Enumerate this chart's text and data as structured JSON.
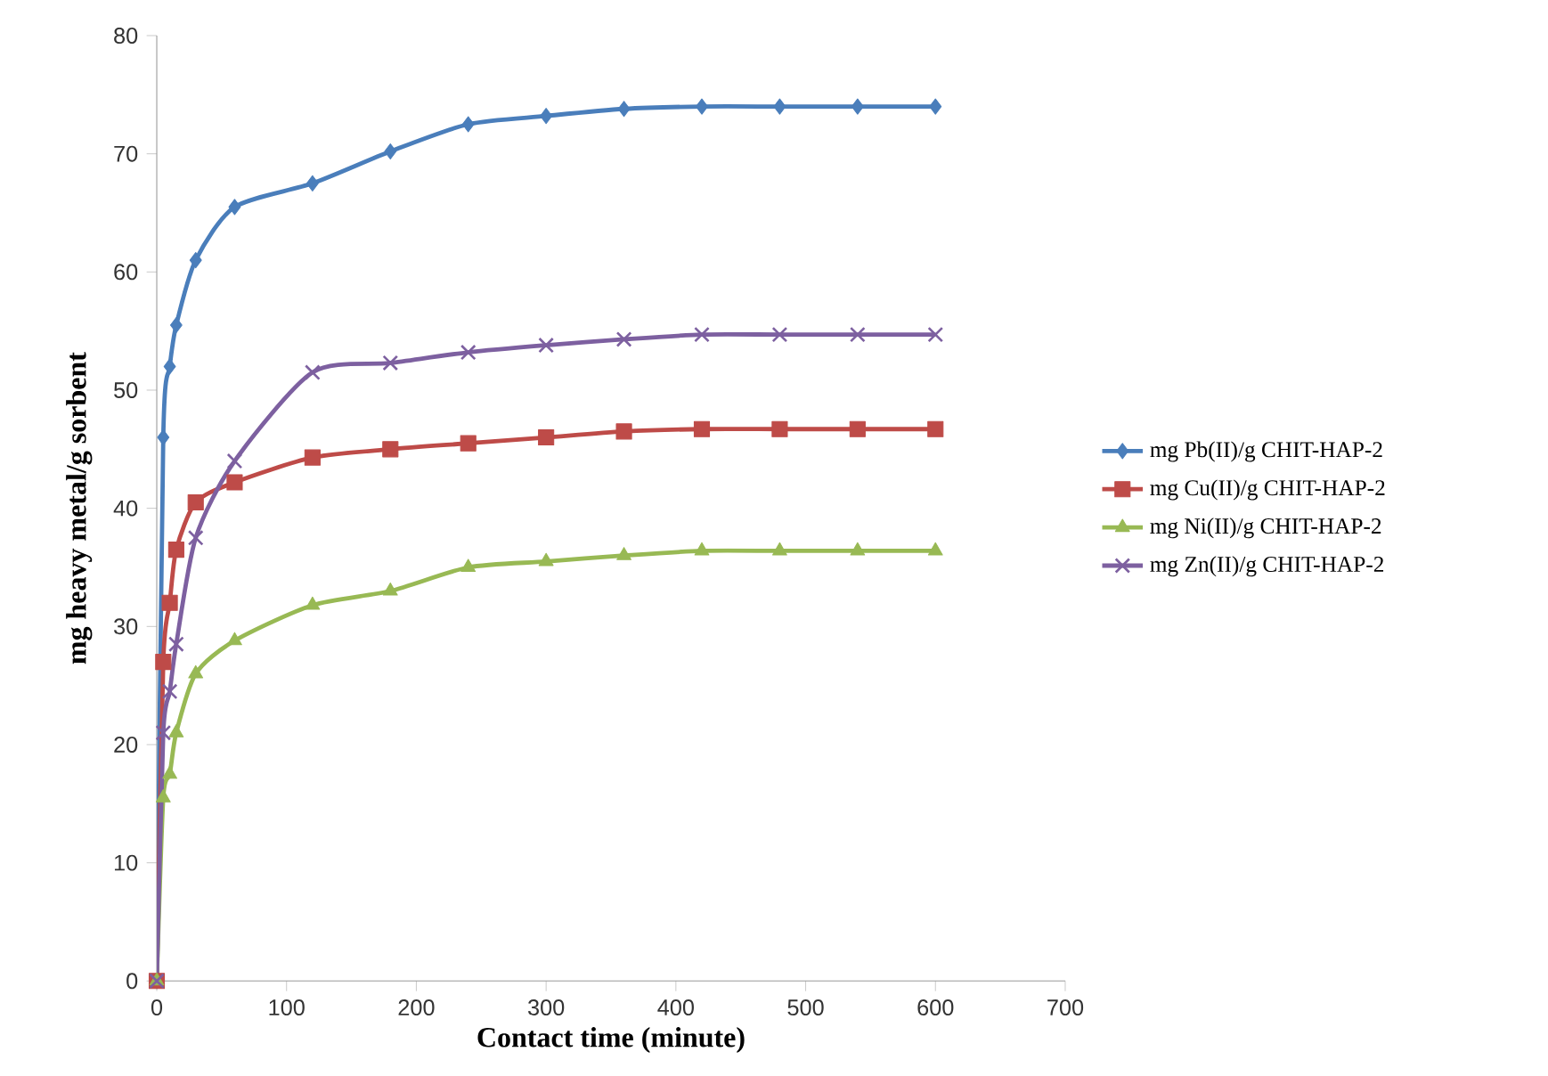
{
  "chart_data": {
    "type": "line",
    "xlabel": "Contact time (minute)",
    "ylabel": "mg heavy metal/g sorbent",
    "x": [
      0,
      5,
      10,
      15,
      30,
      60,
      120,
      180,
      240,
      300,
      360,
      420,
      480,
      540,
      600
    ],
    "xlim": [
      0,
      700
    ],
    "xticks": [
      0,
      100,
      200,
      300,
      400,
      500,
      600,
      700
    ],
    "ylim": [
      0,
      80
    ],
    "yticks": [
      0,
      10,
      20,
      30,
      40,
      50,
      60,
      70,
      80
    ],
    "grid": false,
    "legend": "right",
    "series": [
      {
        "name": "mg Pb(II)/g CHIT-HAP-2",
        "color": "#4a7ebb",
        "marker": "diamond",
        "values": [
          0,
          46,
          52,
          55.5,
          61,
          65.5,
          67.5,
          70.2,
          72.5,
          73.2,
          73.8,
          74,
          74,
          74,
          74
        ]
      },
      {
        "name": "mg Cu(II)/g CHIT-HAP-2",
        "color": "#be4b48",
        "marker": "square",
        "values": [
          0,
          27,
          32,
          36.5,
          40.5,
          42.2,
          44.3,
          45,
          45.5,
          46,
          46.5,
          46.7,
          46.7,
          46.7,
          46.7
        ]
      },
      {
        "name": "mg Ni(II)/g CHIT-HAP-2",
        "color": "#98b954",
        "marker": "triangle",
        "values": [
          0,
          15.5,
          17.5,
          21,
          26,
          28.8,
          31.8,
          33,
          35,
          35.5,
          36,
          36.4,
          36.4,
          36.4,
          36.4
        ]
      },
      {
        "name": "mg Zn(II)/g CHIT-HAP-2",
        "color": "#7d60a0",
        "marker": "cross",
        "values": [
          0,
          21,
          24.5,
          28.5,
          37.5,
          44,
          51.5,
          52.3,
          53.2,
          53.8,
          54.3,
          54.7,
          54.7,
          54.7,
          54.7
        ]
      }
    ]
  }
}
